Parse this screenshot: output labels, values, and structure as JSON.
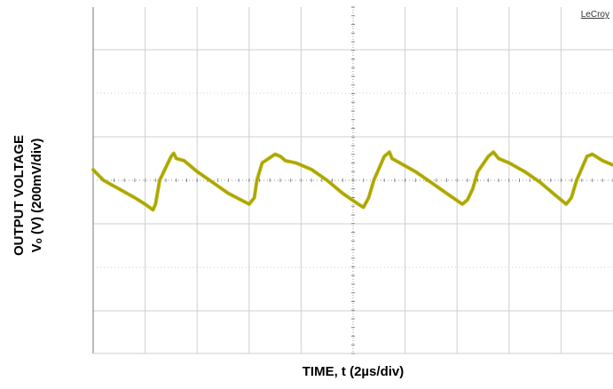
{
  "chart_data": {
    "type": "line",
    "title": "",
    "xlabel": "TIME, t (2µs/div)",
    "ylabel_line1": "OUTPUT VOLTAGE",
    "ylabel_line2": "Vₒ (V) (200mV/div)",
    "brand": "LeCroy",
    "x_unit": "div",
    "y_unit": "div",
    "xlim": [
      0,
      10
    ],
    "ylim": [
      -4,
      4
    ],
    "grid": true,
    "legend": "none",
    "series": [
      {
        "x": [
          0.0,
          0.2,
          0.5,
          0.8,
          1.0,
          1.15,
          1.2,
          1.28,
          1.5,
          1.55,
          1.6,
          1.75,
          1.8,
          2.0,
          2.3,
          2.6,
          3.0,
          3.1,
          3.15,
          3.25,
          3.5,
          3.6,
          3.7,
          3.9,
          4.2,
          4.5,
          4.8,
          5.1,
          5.2,
          5.3,
          5.4,
          5.6,
          5.7,
          5.75,
          5.9,
          6.2,
          6.5,
          6.8,
          7.1,
          7.2,
          7.3,
          7.4,
          7.6,
          7.7,
          7.8,
          8.0,
          8.3,
          8.6,
          8.9,
          9.1,
          9.2,
          9.3,
          9.5,
          9.6,
          9.8,
          10.0
        ],
        "y": [
          0.24,
          0.0,
          -0.2,
          -0.4,
          -0.55,
          -0.68,
          -0.55,
          0.0,
          0.55,
          0.62,
          0.5,
          0.45,
          0.4,
          0.2,
          -0.05,
          -0.3,
          -0.55,
          -0.4,
          0.0,
          0.4,
          0.6,
          0.55,
          0.45,
          0.4,
          0.25,
          0.0,
          -0.3,
          -0.55,
          -0.62,
          -0.4,
          0.0,
          0.55,
          0.65,
          0.5,
          0.4,
          0.2,
          -0.05,
          -0.3,
          -0.55,
          -0.45,
          -0.2,
          0.2,
          0.55,
          0.65,
          0.5,
          0.4,
          0.2,
          -0.05,
          -0.35,
          -0.55,
          -0.4,
          0.0,
          0.55,
          0.6,
          0.45,
          0.35
        ]
      }
    ],
    "trace_color": "#b5b000",
    "grid_color": "#cfcfcf"
  }
}
